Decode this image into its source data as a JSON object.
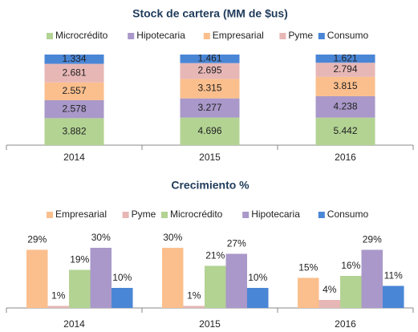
{
  "chart_data": [
    {
      "type": "bar",
      "stacked": true,
      "normalized": true,
      "title": "Stock de cartera (MM de $us)",
      "categories": [
        "2014",
        "2015",
        "2016"
      ],
      "series": [
        {
          "name": "Microcrédito",
          "color": "#b3d393",
          "values": [
            3882,
            4696,
            5442
          ],
          "value_labels": [
            "3.882",
            "4.696",
            "5.442"
          ]
        },
        {
          "name": "Hipotecaria",
          "color": "#a998c9",
          "values": [
            2578,
            3277,
            4238
          ],
          "value_labels": [
            "2.578",
            "3.277",
            "4.238"
          ]
        },
        {
          "name": "Empresarial",
          "color": "#fbbf8d",
          "values": [
            2557,
            3315,
            3815
          ],
          "value_labels": [
            "2.557",
            "3.315",
            "3.815"
          ]
        },
        {
          "name": "Pyme",
          "color": "#e7b7b6",
          "values": [
            2681,
            2695,
            2794
          ],
          "value_labels": [
            "2.681",
            "2.695",
            "2.794"
          ]
        },
        {
          "name": "Consumo",
          "color": "#4a86d6",
          "values": [
            1334,
            1461,
            1621
          ],
          "value_labels": [
            "1.334",
            "1.461",
            "1.621"
          ]
        }
      ]
    },
    {
      "type": "bar",
      "stacked": false,
      "title": "Crecimiento %",
      "categories": [
        "2014",
        "2015",
        "2016"
      ],
      "series": [
        {
          "name": "Empresarial",
          "color": "#fbbf8d",
          "values": [
            29,
            30,
            15
          ],
          "value_labels": [
            "29%",
            "30%",
            "15%"
          ]
        },
        {
          "name": "Pyme",
          "color": "#e7b7b6",
          "values": [
            1,
            1,
            4
          ],
          "value_labels": [
            "1%",
            "1%",
            "4%"
          ]
        },
        {
          "name": "Microcrédito",
          "color": "#b3d393",
          "values": [
            19,
            21,
            16
          ],
          "value_labels": [
            "19%",
            "21%",
            "16%"
          ]
        },
        {
          "name": "Hipotecaria",
          "color": "#a998c9",
          "values": [
            30,
            27,
            29
          ],
          "value_labels": [
            "30%",
            "27%",
            "29%"
          ]
        },
        {
          "name": "Consumo",
          "color": "#4a86d6",
          "values": [
            10,
            10,
            11
          ],
          "value_labels": [
            "10%",
            "10%",
            "11%"
          ]
        }
      ]
    }
  ]
}
